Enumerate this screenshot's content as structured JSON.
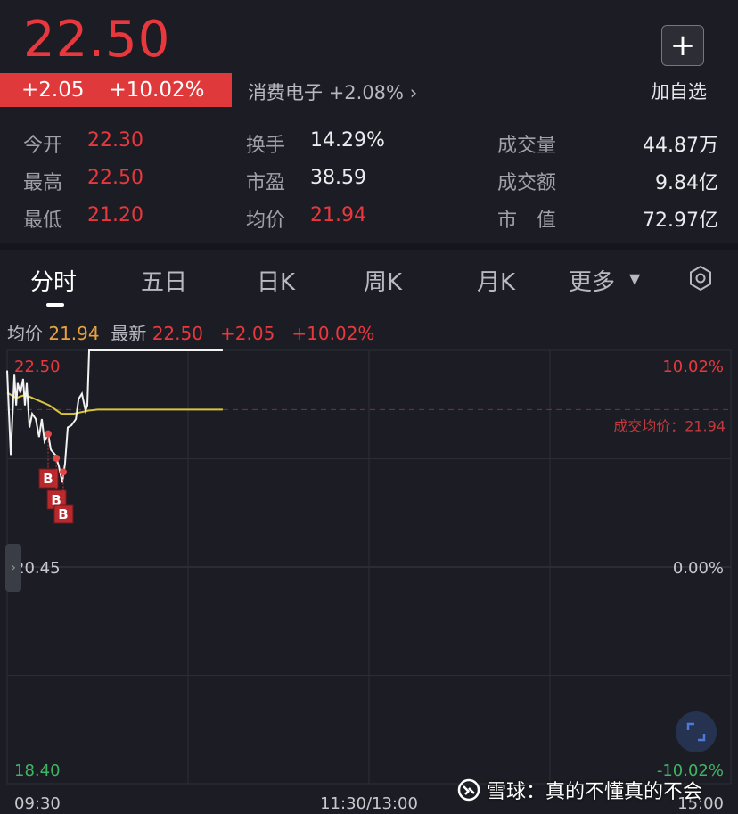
{
  "quote": {
    "price": "22.50",
    "change": "+2.05",
    "change_pct": "+10.02%",
    "sector": "消费电子",
    "sector_pct": "+2.08%",
    "add_label": "加自选"
  },
  "stats": [
    [
      {
        "label": "今开",
        "value": "22.30",
        "color": "red"
      },
      {
        "label": "换手",
        "value": "14.29%",
        "color": "white"
      },
      {
        "label": "成交量",
        "value": "44.87万",
        "color": "white"
      }
    ],
    [
      {
        "label": "最高",
        "value": "22.50",
        "color": "red"
      },
      {
        "label": "市盈",
        "value": "38.59",
        "color": "white"
      },
      {
        "label": "成交额",
        "value": "9.84亿",
        "color": "white"
      }
    ],
    [
      {
        "label": "最低",
        "value": "21.20",
        "color": "red"
      },
      {
        "label": "均价",
        "value": "21.94",
        "color": "red"
      },
      {
        "label": "市　值",
        "value": "72.97亿",
        "color": "white"
      }
    ]
  ],
  "tabs": [
    "分时",
    "五日",
    "日K",
    "周K",
    "月K",
    "更多"
  ],
  "legend": {
    "avg_label": "均价",
    "avg": "21.94",
    "last_label": "最新",
    "last": "22.50",
    "chg": "+2.05",
    "pct": "+10.02%"
  },
  "chart_data": {
    "type": "line",
    "y_left_ticks": [
      "22.50",
      "20.45",
      "18.40"
    ],
    "y_right_ticks": [
      "10.02%",
      "0.00%",
      "-10.02%"
    ],
    "x_ticks": [
      "09:30",
      "11:30/13:00",
      "15:00"
    ],
    "ylim": [
      18.4,
      22.5
    ],
    "avg_annotation": "成交均价：21.94",
    "price": {
      "minute": [
        0,
        1.2,
        2.4,
        3,
        3.5,
        4.4,
        5.3,
        5.9,
        6.5,
        7.4,
        8.3,
        9.5,
        10.6,
        11.5,
        12.4,
        13.6,
        14.5,
        16,
        17.1,
        18.3,
        19.2,
        20.1,
        21.3,
        22.8,
        23.7,
        24.8,
        26,
        26.6,
        27.2,
        71.5
      ],
      "value": [
        22.31,
        21.51,
        22.27,
        21.98,
        22.19,
        22.1,
        22.23,
        21.98,
        22.19,
        21.77,
        21.9,
        21.85,
        21.68,
        21.85,
        21.64,
        21.71,
        21.56,
        21.51,
        21.41,
        21.25,
        21.43,
        21.77,
        21.79,
        21.85,
        22.04,
        22.09,
        21.93,
        21.98,
        22.5,
        22.5
      ]
    },
    "avg": {
      "minute": [
        0,
        3,
        6,
        10,
        14,
        18,
        22,
        27,
        30,
        71.5
      ],
      "value": [
        22.1,
        22.05,
        22.08,
        22.03,
        21.98,
        21.9,
        21.9,
        21.93,
        21.94,
        21.94
      ]
    },
    "buys": [
      {
        "minute": 13.6,
        "value": 21.71,
        "label": "B"
      },
      {
        "minute": 16.3,
        "value": 21.48,
        "label": "B"
      },
      {
        "minute": 18.6,
        "value": 21.35,
        "label": "B"
      }
    ]
  },
  "watermark": "雪球：真的不懂真的不会",
  "colors": {
    "red": "#e8383d",
    "green": "#3fb564",
    "avg": "#d9c53a"
  }
}
